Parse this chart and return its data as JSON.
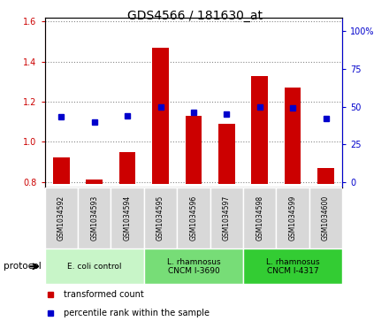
{
  "title": "GDS4566 / 181630_at",
  "samples": [
    "GSM1034592",
    "GSM1034593",
    "GSM1034594",
    "GSM1034595",
    "GSM1034596",
    "GSM1034597",
    "GSM1034598",
    "GSM1034599",
    "GSM1034600"
  ],
  "bar_values": [
    0.92,
    0.81,
    0.95,
    1.47,
    1.13,
    1.09,
    1.33,
    1.27,
    0.87
  ],
  "dot_values_pct": [
    43,
    40,
    44,
    50,
    46,
    45,
    50,
    49,
    42
  ],
  "bar_color": "#cc0000",
  "dot_color": "#0000cc",
  "ylim_left": [
    0.77,
    1.62
  ],
  "ylim_right": [
    -3.85,
    109
  ],
  "yticks_left": [
    0.8,
    1.0,
    1.2,
    1.4,
    1.6
  ],
  "ytick_labels_left": [
    "0.8",
    "1.0",
    "1.2",
    "1.4",
    "1.6"
  ],
  "yticks_right": [
    0,
    25,
    50,
    75,
    100
  ],
  "ytick_labels_right": [
    "0",
    "25",
    "50",
    "75",
    "100%"
  ],
  "bar_base": 0.79,
  "protocol_groups": [
    {
      "label": "E. coli control",
      "indices": [
        0,
        1,
        2
      ],
      "color": "#c8f5c8"
    },
    {
      "label": "L. rhamnosus\nCNCM I-3690",
      "indices": [
        3,
        4,
        5
      ],
      "color": "#77dd77"
    },
    {
      "label": "L. rhamnosus\nCNCM I-4317",
      "indices": [
        6,
        7,
        8
      ],
      "color": "#33cc33"
    }
  ],
  "legend_items": [
    {
      "label": "transformed count",
      "color": "#cc0000"
    },
    {
      "label": "percentile rank within the sample",
      "color": "#0000cc"
    }
  ],
  "protocol_label": "protocol",
  "grid_color": "#888888",
  "tick_color_left": "#cc0000",
  "tick_color_right": "#0000cc",
  "title_fontsize": 10,
  "bar_width": 0.5,
  "sample_box_color": "#d8d8d8",
  "fig_bg": "#ffffff"
}
